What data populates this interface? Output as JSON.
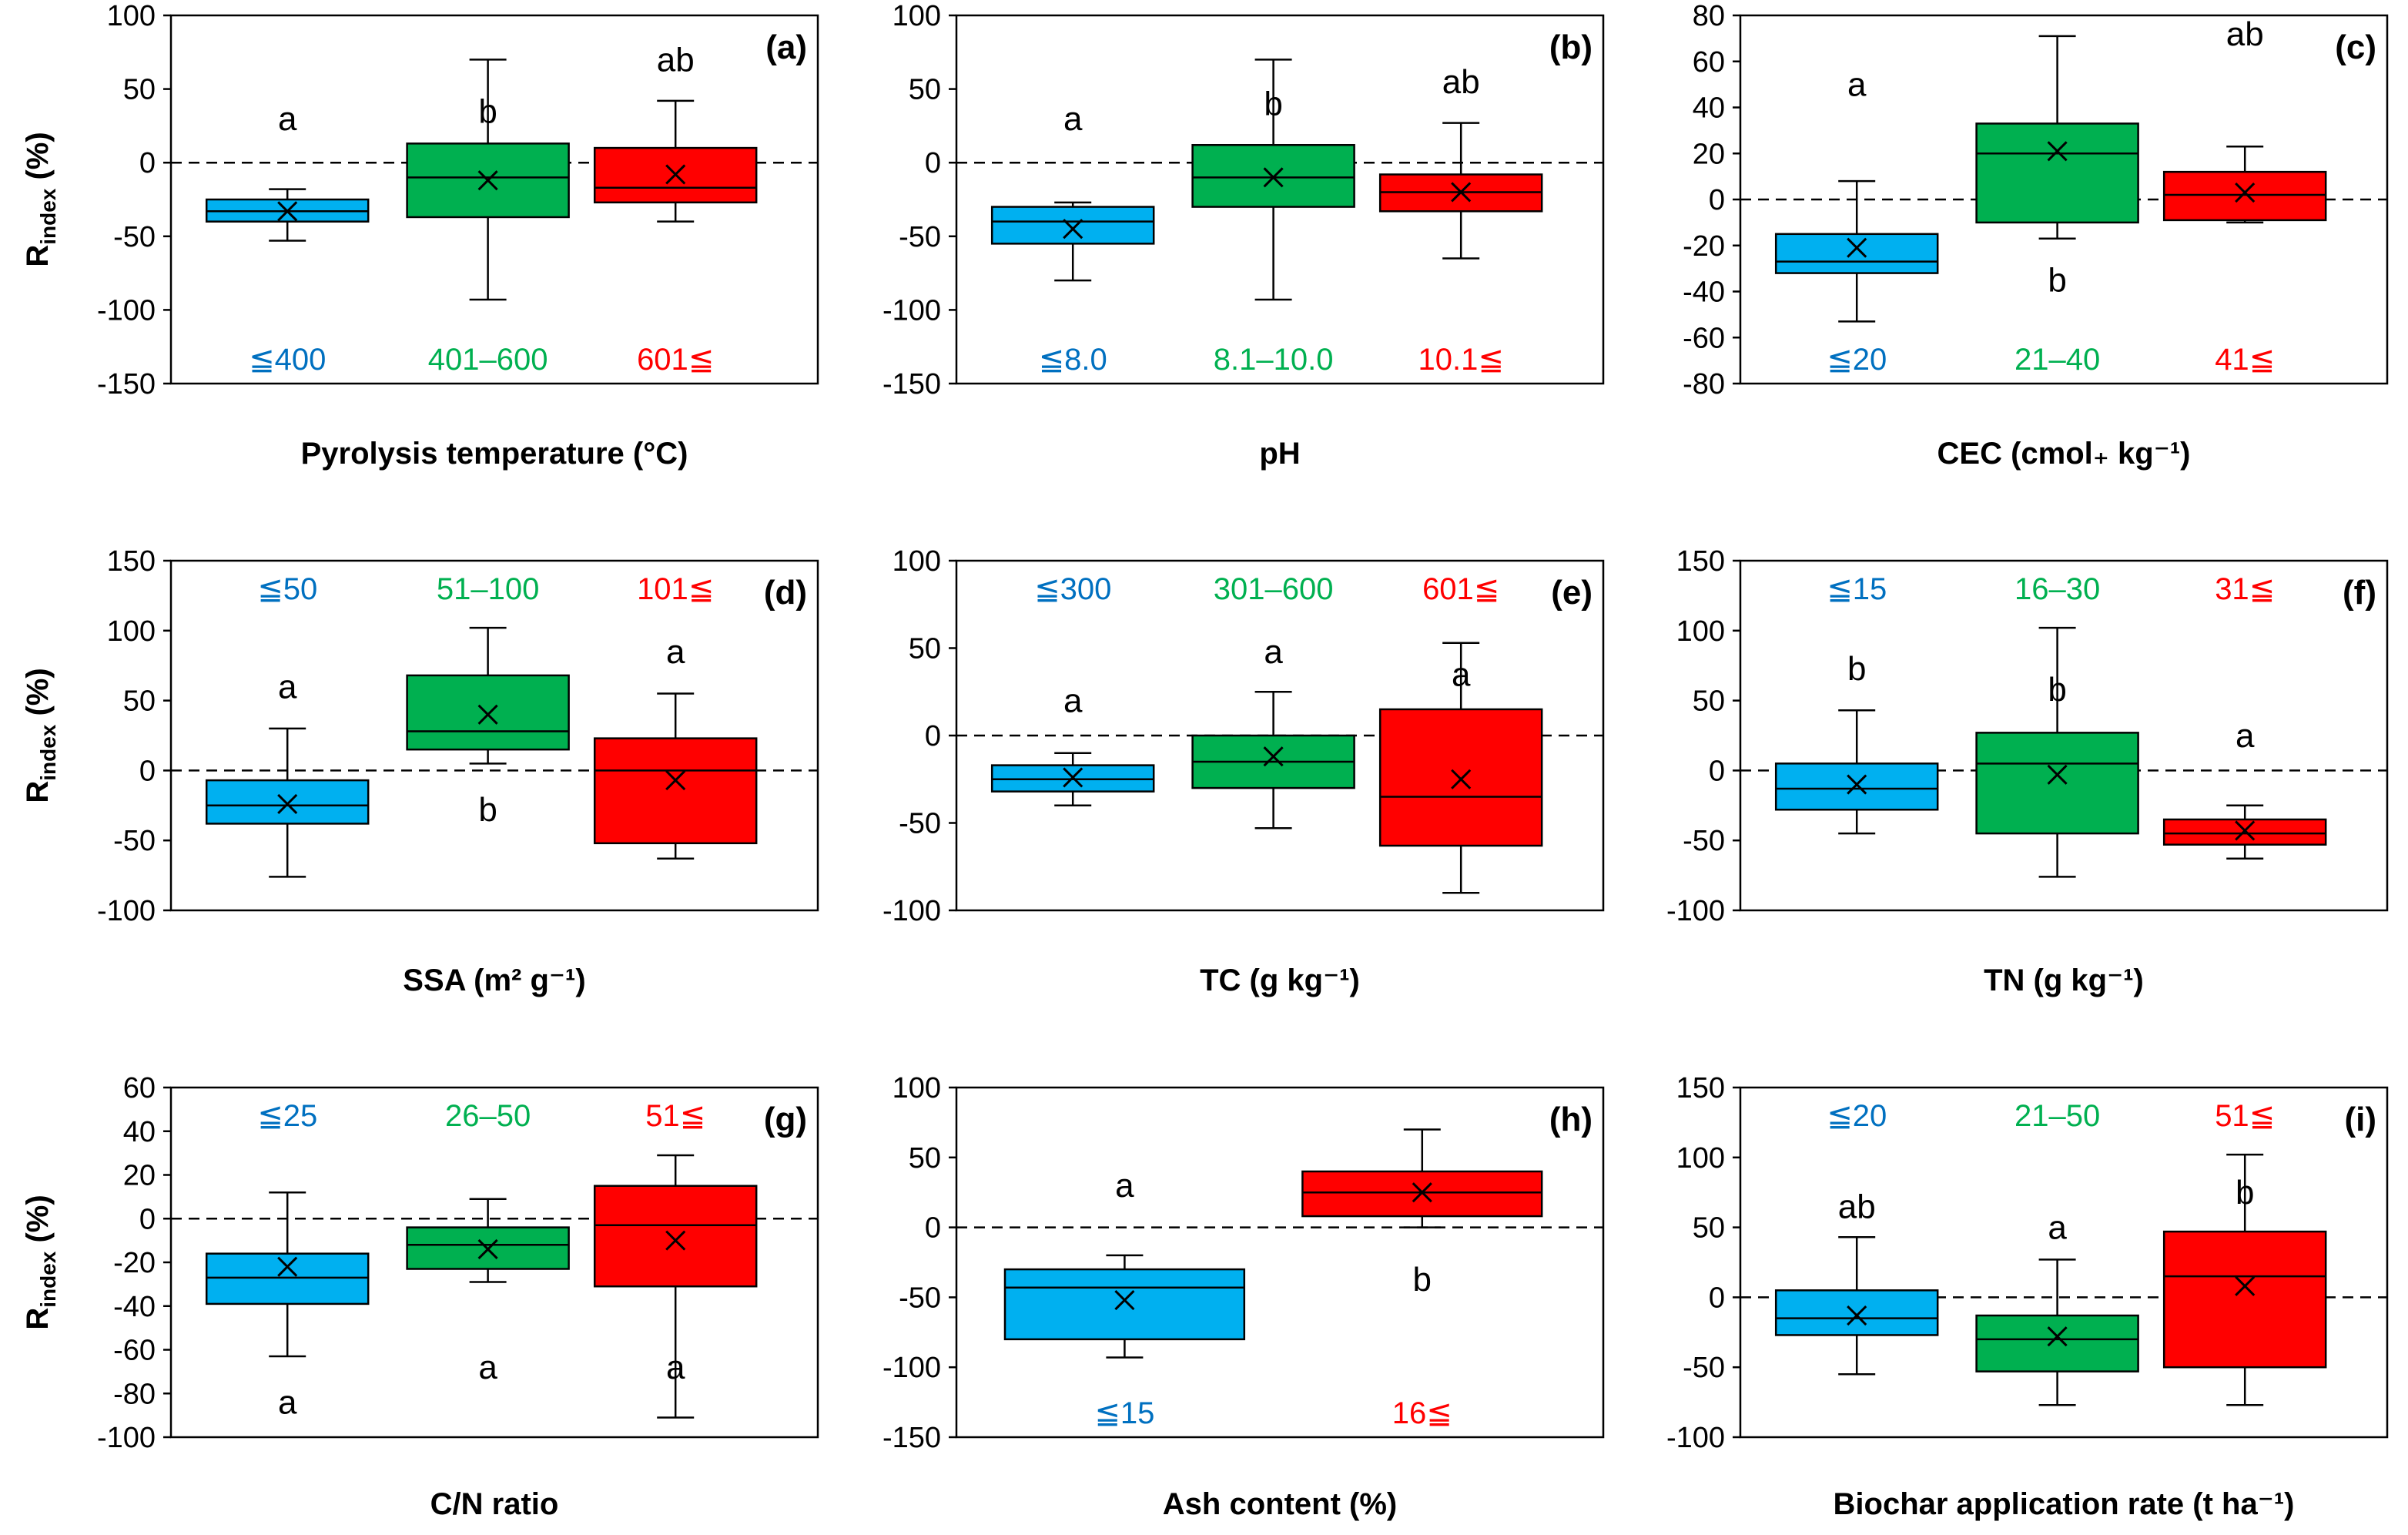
{
  "colors": {
    "blue": "#00b0f0",
    "green": "#00b050",
    "red": "#ff0000",
    "blue_text": "#0070c0",
    "green_text": "#00b050",
    "red_text": "#ff0000"
  },
  "y_axis_label": {
    "main": "R",
    "sub": "index",
    "unit": " (%)"
  },
  "chart_data": [
    {
      "type": "box",
      "panel": "(a)",
      "xlabel": "Pyrolysis temperature (°C)",
      "ylim": [
        -150,
        100
      ],
      "ytick_step": 50,
      "category_label_position": "bottom",
      "categories": [
        {
          "label": "≦400",
          "color": "blue",
          "min": -53,
          "q1": -40,
          "median": -33,
          "q3": -25,
          "max": -18,
          "mean": -33,
          "letter": "a",
          "letter_value": 30
        },
        {
          "label": "401–600",
          "color": "green",
          "min": -93,
          "q1": -37,
          "median": -10,
          "q3": 13,
          "max": 70,
          "mean": -12,
          "letter": "b",
          "letter_value": 35
        },
        {
          "label": "601≦",
          "color": "red",
          "min": -40,
          "q1": -27,
          "median": -17,
          "q3": 10,
          "max": 42,
          "mean": -8,
          "letter": "ab",
          "letter_value": 70
        }
      ]
    },
    {
      "type": "box",
      "panel": "(b)",
      "xlabel": "pH",
      "ylim": [
        -150,
        100
      ],
      "ytick_step": 50,
      "category_label_position": "bottom",
      "categories": [
        {
          "label": "≦8.0",
          "color": "blue",
          "min": -80,
          "q1": -55,
          "median": -40,
          "q3": -30,
          "max": -27,
          "mean": -45,
          "letter": "a",
          "letter_value": 30
        },
        {
          "label": "8.1–10.0",
          "color": "green",
          "min": -93,
          "q1": -30,
          "median": -10,
          "q3": 12,
          "max": 70,
          "mean": -10,
          "letter": "b",
          "letter_value": 40
        },
        {
          "label": "10.1≦",
          "color": "red",
          "min": -65,
          "q1": -33,
          "median": -20,
          "q3": -8,
          "max": 27,
          "mean": -20,
          "letter": "ab",
          "letter_value": 55
        }
      ]
    },
    {
      "type": "box",
      "panel": "(c)",
      "xlabel": "CEC (cmol₊ kg⁻¹)",
      "ylim": [
        -80,
        80
      ],
      "ytick_step": 20,
      "category_label_position": "bottom",
      "categories": [
        {
          "label": "≦20",
          "color": "blue",
          "min": -53,
          "q1": -32,
          "median": -27,
          "q3": -15,
          "max": 8,
          "mean": -21,
          "letter": "a",
          "letter_value": 50
        },
        {
          "label": "21–40",
          "color": "green",
          "min": -17,
          "q1": -10,
          "median": 20,
          "q3": 33,
          "max": 71,
          "mean": 21,
          "letter": "b",
          "letter_value": -35
        },
        {
          "label": "41≦",
          "color": "red",
          "min": -10,
          "q1": -9,
          "median": 2,
          "q3": 12,
          "max": 23,
          "mean": 3,
          "letter": "ab",
          "letter_value": 72
        }
      ]
    },
    {
      "type": "box",
      "panel": "(d)",
      "xlabel": "SSA (m² g⁻¹)",
      "ylim": [
        -100,
        150
      ],
      "ytick_step": 50,
      "category_label_position": "top",
      "categories": [
        {
          "label": "≦50",
          "color": "blue",
          "min": -76,
          "q1": -38,
          "median": -25,
          "q3": -7,
          "max": 30,
          "mean": -24,
          "letter": "a",
          "letter_value": 60
        },
        {
          "label": "51–100",
          "color": "green",
          "min": 5,
          "q1": 15,
          "median": 28,
          "q3": 68,
          "max": 102,
          "mean": 40,
          "letter": "b",
          "letter_value": -28
        },
        {
          "label": "101≦",
          "color": "red",
          "min": -63,
          "q1": -52,
          "median": 0,
          "q3": 23,
          "max": 55,
          "mean": -7,
          "letter": "a",
          "letter_value": 85
        }
      ]
    },
    {
      "type": "box",
      "panel": "(e)",
      "xlabel": "TC (g kg⁻¹)",
      "ylim": [
        -100,
        100
      ],
      "ytick_step": 50,
      "category_label_position": "top",
      "categories": [
        {
          "label": "≦300",
          "color": "blue",
          "min": -40,
          "q1": -32,
          "median": -25,
          "q3": -17,
          "max": -10,
          "mean": -24,
          "letter": "a",
          "letter_value": 20
        },
        {
          "label": "301–600",
          "color": "green",
          "min": -53,
          "q1": -30,
          "median": -15,
          "q3": 0,
          "max": 25,
          "mean": -12,
          "letter": "a",
          "letter_value": 48
        },
        {
          "label": "601≦",
          "color": "red",
          "min": -90,
          "q1": -63,
          "median": -35,
          "q3": 15,
          "max": 53,
          "mean": -25,
          "letter": "a",
          "letter_value": 35
        }
      ]
    },
    {
      "type": "box",
      "panel": "(f)",
      "xlabel": "TN (g kg⁻¹)",
      "ylim": [
        -100,
        150
      ],
      "ytick_step": 50,
      "category_label_position": "top",
      "categories": [
        {
          "label": "≦15",
          "color": "blue",
          "min": -45,
          "q1": -28,
          "median": -13,
          "q3": 5,
          "max": 43,
          "mean": -10,
          "letter": "b",
          "letter_value": 73
        },
        {
          "label": "16–30",
          "color": "green",
          "min": -76,
          "q1": -45,
          "median": 5,
          "q3": 27,
          "max": 102,
          "mean": -3,
          "letter": "b",
          "letter_value": 58
        },
        {
          "label": "31≦",
          "color": "red",
          "min": -63,
          "q1": -53,
          "median": -45,
          "q3": -35,
          "max": -25,
          "mean": -43,
          "letter": "a",
          "letter_value": 25
        }
      ]
    },
    {
      "type": "box",
      "panel": "(g)",
      "xlabel": "C/N ratio",
      "ylim": [
        -100,
        60
      ],
      "ytick_step": 20,
      "category_label_position": "top",
      "categories": [
        {
          "label": "≦25",
          "color": "blue",
          "min": -63,
          "q1": -39,
          "median": -27,
          "q3": -16,
          "max": 12,
          "mean": -22,
          "letter": "a",
          "letter_value": -84
        },
        {
          "label": "26–50",
          "color": "green",
          "min": -29,
          "q1": -23,
          "median": -12,
          "q3": -4,
          "max": 9,
          "mean": -14,
          "letter": "a",
          "letter_value": -68
        },
        {
          "label": "51≦",
          "color": "red",
          "min": -91,
          "q1": -31,
          "median": -3,
          "q3": 15,
          "max": 29,
          "mean": -10,
          "letter": "a",
          "letter_value": -68
        }
      ]
    },
    {
      "type": "box",
      "panel": "(h)",
      "xlabel": "Ash content (%)",
      "ylim": [
        -150,
        100
      ],
      "ytick_step": 50,
      "category_label_position": "bottom",
      "categories": [
        {
          "label": "≦15",
          "color": "blue",
          "min": -93,
          "q1": -80,
          "median": -43,
          "q3": -30,
          "max": -20,
          "mean": -52,
          "letter": "a",
          "letter_value": 30
        },
        {
          "label": "16≦",
          "color": "red",
          "min": 0,
          "q1": 8,
          "median": 25,
          "q3": 40,
          "max": 70,
          "mean": 25,
          "letter": "b",
          "letter_value": -37
        }
      ]
    },
    {
      "type": "box",
      "panel": "(i)",
      "xlabel": "Biochar application rate (t ha⁻¹)",
      "ylim": [
        -100,
        150
      ],
      "ytick_step": 50,
      "category_label_position": "top",
      "categories": [
        {
          "label": "≦20",
          "color": "blue",
          "min": -55,
          "q1": -27,
          "median": -15,
          "q3": 5,
          "max": 43,
          "mean": -13,
          "letter": "ab",
          "letter_value": 65
        },
        {
          "label": "21–50",
          "color": "green",
          "min": -77,
          "q1": -53,
          "median": -30,
          "q3": -13,
          "max": 27,
          "mean": -28,
          "letter": "a",
          "letter_value": 50
        },
        {
          "label": "51≦",
          "color": "red",
          "min": -77,
          "q1": -50,
          "median": 15,
          "q3": 47,
          "max": 102,
          "mean": 8,
          "letter": "b",
          "letter_value": 75
        }
      ]
    }
  ]
}
